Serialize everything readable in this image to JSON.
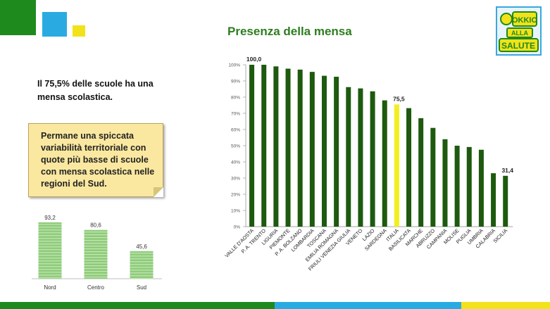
{
  "page": {
    "title": "Presenza della mensa",
    "intro": "Il 75,5% delle scuole ha una mensa scolastica.",
    "note": "Permane una spiccata variabilità territoriale con quote più basse di scuole con mensa scolastica nelle regioni del Sud.",
    "logo_text": [
      "OKKIO",
      "ALLA",
      "SALUTE"
    ]
  },
  "colors": {
    "green_dark": "#1d5a0f",
    "highlight": "#f2ef1f",
    "light_green": "#8fcc7a",
    "title_green": "#2e7d1f",
    "deco_green": "#1e8a1e",
    "deco_blue": "#29abe2",
    "deco_yellow": "#f2e21a"
  },
  "chart_data": [
    {
      "type": "bar",
      "title": "",
      "categories": [
        "VALLE D'AOSTA",
        "P. A. TRENTO",
        "LIGURIA",
        "PIEMONTE",
        "P. A. BOLZANO",
        "LOMBARDIA",
        "TOSCANA",
        "EMILIA ROMAGNA",
        "FRIULI VENEZIA GIULIA",
        "VENETO",
        "LAZIO",
        "SARDEGNA",
        "ITALIA",
        "BASILICATA",
        "MARCHE",
        "ABRUZZO",
        "CAMPANIA",
        "MOLISE",
        "PUGLIA",
        "UMBRIA",
        "CALABRIA",
        "SICILIA"
      ],
      "values": [
        100.0,
        100.0,
        99.0,
        97.6,
        97.0,
        95.6,
        93.2,
        92.6,
        86.2,
        85.4,
        83.6,
        78.0,
        75.5,
        73.2,
        67.0,
        61.0,
        54.0,
        50.0,
        49.2,
        47.5,
        33.0,
        31.4
      ],
      "highlight_category": "ITALIA",
      "data_labels": [
        {
          "category": "VALLE D'AOSTA",
          "text": "100,0"
        },
        {
          "category": "ITALIA",
          "text": "75,5"
        },
        {
          "category": "SICILIA",
          "text": "31,4"
        }
      ],
      "yticks": [
        "0%",
        "10%",
        "20%",
        "30%",
        "40%",
        "50%",
        "60%",
        "70%",
        "80%",
        "90%",
        "100%"
      ],
      "ylim": [
        0,
        100
      ],
      "grid": false,
      "legend": "none"
    },
    {
      "type": "bar",
      "title": "",
      "categories": [
        "Nord",
        "Centro",
        "Sud"
      ],
      "values": [
        93.2,
        80.6,
        45.6
      ],
      "data_labels": [
        "93,2",
        "80,6",
        "45,6"
      ],
      "ylim": [
        0,
        100
      ],
      "grid": false,
      "legend": "none"
    }
  ]
}
